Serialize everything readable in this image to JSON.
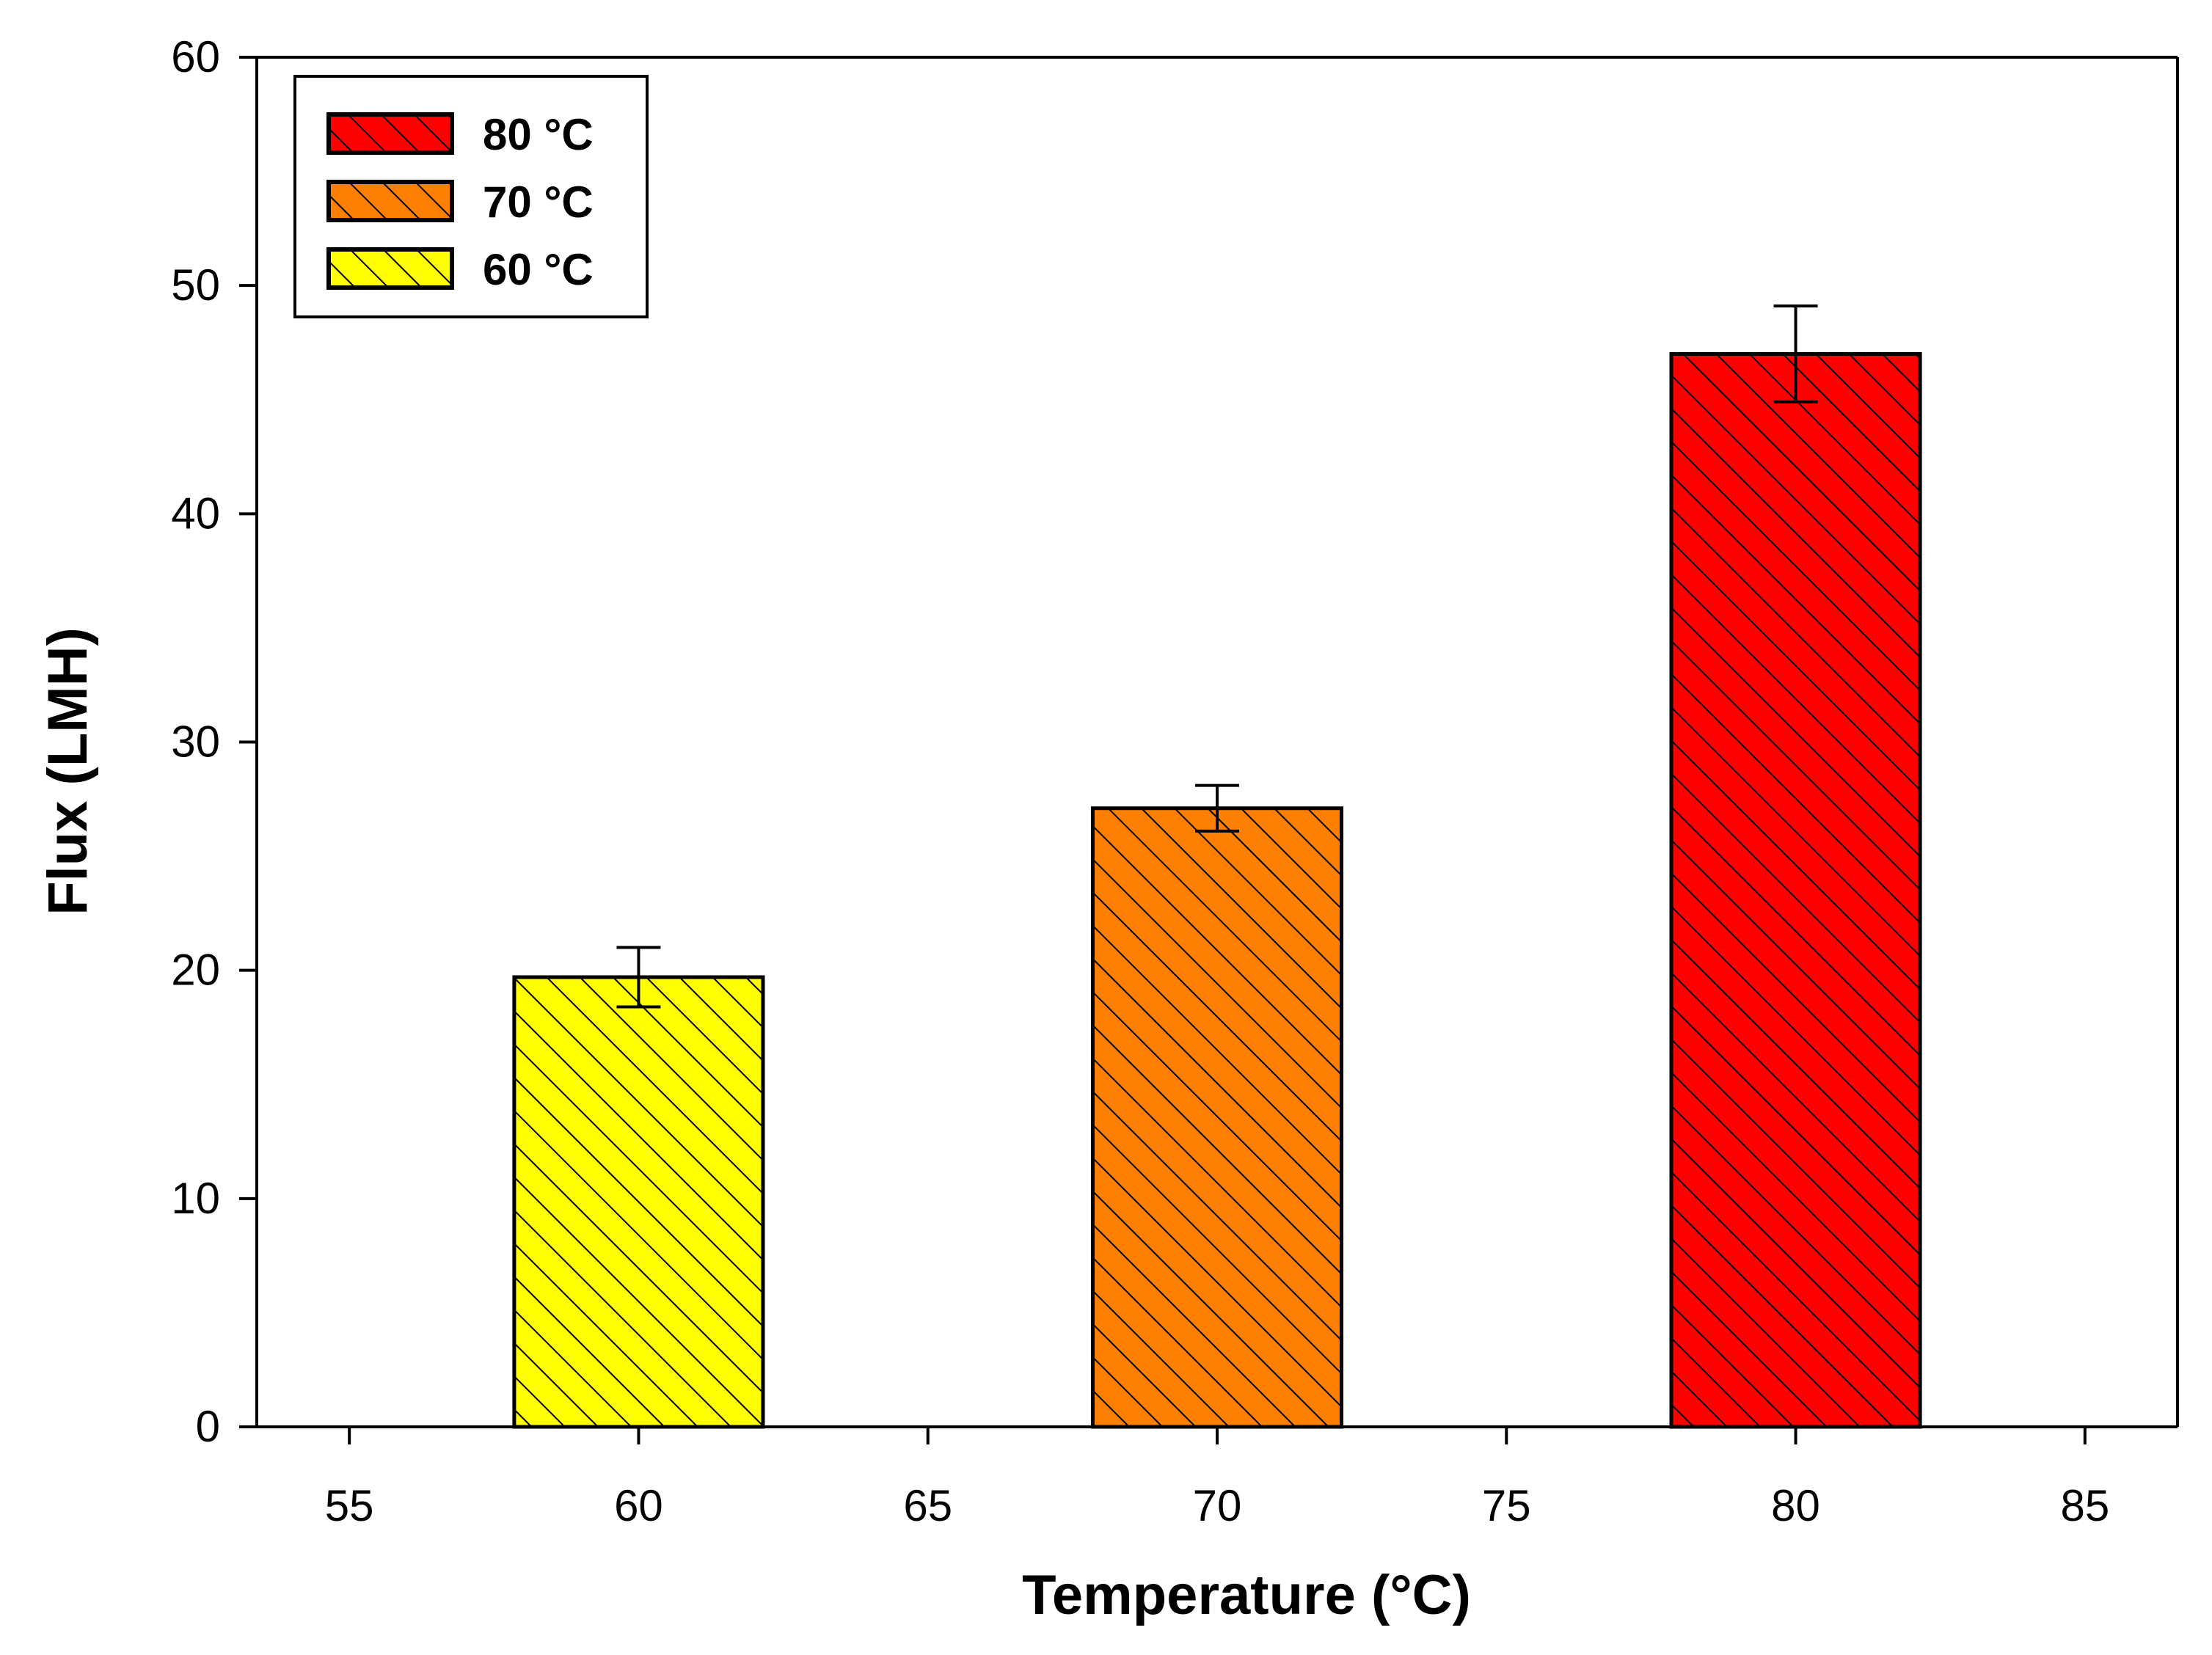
{
  "chart_data": {
    "type": "bar",
    "title": "",
    "xlabel": "Temperature (°C)",
    "ylabel": "Flux (LMH)",
    "xlim": [
      53.4,
      86.6
    ],
    "ylim": [
      0,
      60
    ],
    "x_ticks": [
      55,
      60,
      65,
      70,
      75,
      80,
      85
    ],
    "y_ticks": [
      0,
      10,
      20,
      30,
      40,
      50,
      60
    ],
    "bar_width": 4.3,
    "grid": false,
    "legend_position": "top-left",
    "series": [
      {
        "name": "60 °C",
        "x": 60,
        "value": 19.7,
        "error": 1.3,
        "color": "#ffff00",
        "hatch": "diagonal"
      },
      {
        "name": "70 °C",
        "x": 70,
        "value": 27.1,
        "error": 1.0,
        "color": "#ff8000",
        "hatch": "diagonal"
      },
      {
        "name": "80 °C",
        "x": 80,
        "value": 47.0,
        "error": 2.1,
        "color": "#ff0000",
        "hatch": "diagonal"
      }
    ],
    "legend_order": [
      "80 °C",
      "70 °C",
      "60 °C"
    ]
  }
}
